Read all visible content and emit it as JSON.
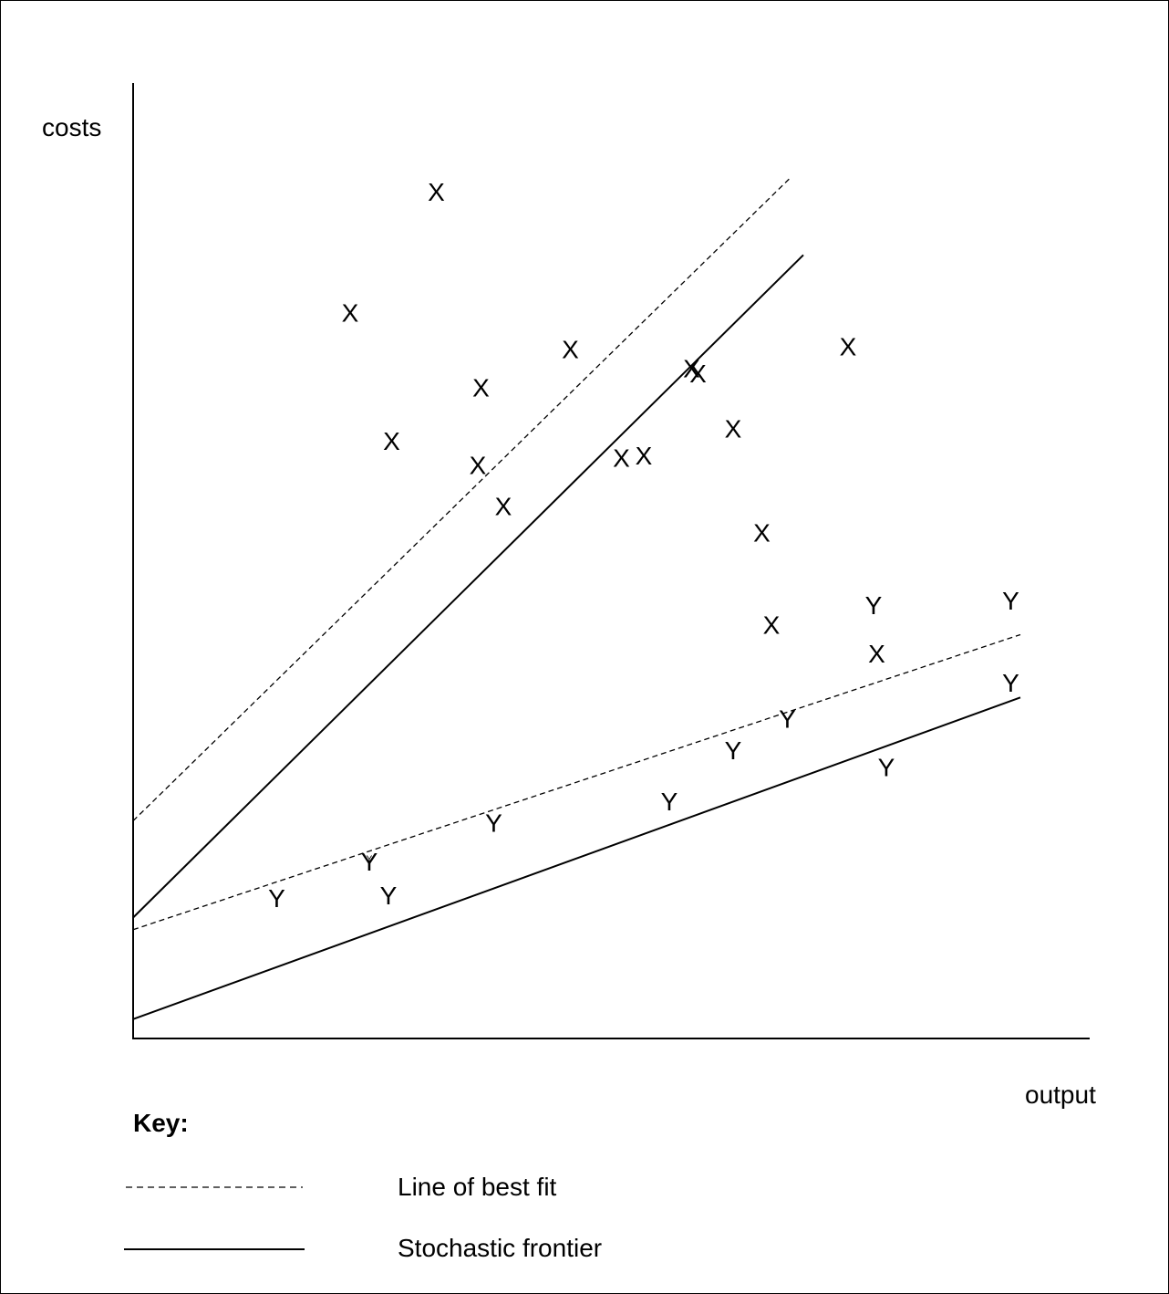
{
  "chart_data": {
    "type": "scatter",
    "xlabel": "output",
    "ylabel": "costs",
    "key_title": "Key:",
    "key_items": [
      {
        "label": "Line of best fit",
        "style": "dashed"
      },
      {
        "label": "Stochastic frontier",
        "style": "solid"
      }
    ],
    "series": [
      {
        "marker": "X",
        "points": [
          {
            "x": 95,
            "y": 350
          },
          {
            "x": 68,
            "y": 300
          },
          {
            "x": 137,
            "y": 285
          },
          {
            "x": 177,
            "y": 275
          },
          {
            "x": 188,
            "y": 252
          },
          {
            "x": 109,
            "y": 269
          },
          {
            "x": 81,
            "y": 247
          },
          {
            "x": 108,
            "y": 237
          },
          {
            "x": 153,
            "y": 240
          },
          {
            "x": 175,
            "y": 277
          },
          {
            "x": 197,
            "y": 209
          },
          {
            "x": 200,
            "y": 171
          },
          {
            "x": 160,
            "y": 241
          },
          {
            "x": 116,
            "y": 220
          },
          {
            "x": 233,
            "y": 159
          },
          {
            "x": 224,
            "y": 286
          }
        ]
      },
      {
        "marker": "Y",
        "points": [
          {
            "x": 45,
            "y": 58
          },
          {
            "x": 80,
            "y": 59
          },
          {
            "x": 113,
            "y": 89
          },
          {
            "x": 74,
            "y": 73
          },
          {
            "x": 168,
            "y": 98
          },
          {
            "x": 188,
            "y": 119
          },
          {
            "x": 205,
            "y": 132
          },
          {
            "x": 236,
            "y": 112
          },
          {
            "x": 232,
            "y": 179
          },
          {
            "x": 275,
            "y": 147
          },
          {
            "x": 275,
            "y": 181
          }
        ]
      }
    ],
    "lines": [
      {
        "group": "X",
        "style": "dashed",
        "from": [
          0,
          90
        ],
        "to": [
          206,
          356
        ]
      },
      {
        "group": "X",
        "style": "solid",
        "from": [
          0,
          50
        ],
        "to": [
          210,
          324
        ]
      },
      {
        "group": "Y",
        "style": "dashed",
        "from": [
          0,
          45
        ],
        "to": [
          278,
          167
        ]
      },
      {
        "group": "Y",
        "style": "solid",
        "from": [
          0,
          8
        ],
        "to": [
          278,
          141
        ]
      }
    ],
    "xlim": [
      0,
      300
    ],
    "ylim": [
      0,
      400
    ],
    "grid": false,
    "legend_position": "bottom-left"
  },
  "annotation": {
    "label": "Y",
    "x": 74,
    "y": 74
  },
  "colors": {
    "ink": "#000000",
    "background": "#ffffff",
    "border": "#000000"
  }
}
